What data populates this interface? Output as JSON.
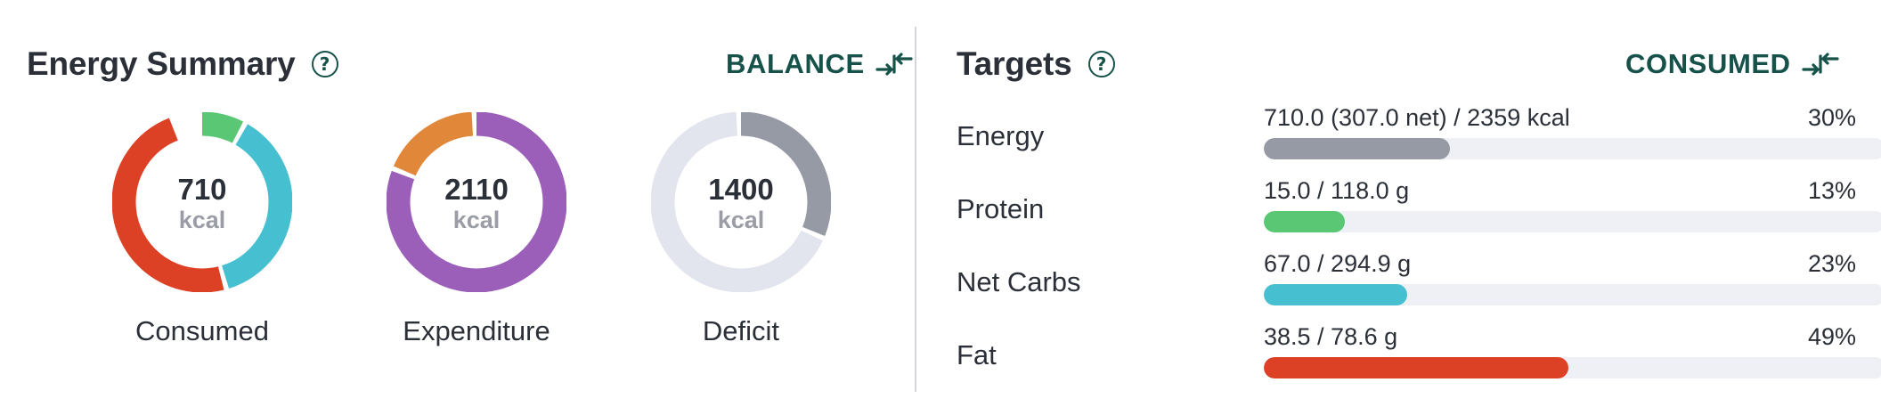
{
  "energy_summary": {
    "title": "Energy Summary",
    "help_icon": "question-circle-icon",
    "toggle_label": "BALANCE",
    "toggle_icon": "arrows-collapse-icon",
    "rings": [
      {
        "id": "consumed",
        "value": "710",
        "unit": "kcal",
        "label": "Consumed",
        "segments": [
          {
            "name": "protein",
            "fraction": 0.084,
            "color": "#5ac774"
          },
          {
            "name": "carbs",
            "fraction": 0.377,
            "color": "#46c0d1"
          },
          {
            "name": "fat",
            "fraction": 0.488,
            "color": "#dd4125"
          }
        ]
      },
      {
        "id": "expenditure",
        "value": "2110",
        "unit": "kcal",
        "label": "Expenditure",
        "segments": [
          {
            "name": "main",
            "fraction": 0.815,
            "color": "#9b5fba"
          },
          {
            "name": "activity",
            "fraction": 0.185,
            "color": "#e0873a"
          }
        ]
      },
      {
        "id": "deficit",
        "value": "1400",
        "unit": "kcal",
        "label": "Deficit",
        "segments": [
          {
            "name": "consumed",
            "fraction": 0.32,
            "color": "#969aa5"
          },
          {
            "name": "remaining",
            "fraction": 0.68,
            "color": "#e3e5ee"
          }
        ]
      }
    ]
  },
  "targets": {
    "title": "Targets",
    "help_icon": "question-circle-icon",
    "toggle_label": "CONSUMED",
    "toggle_icon": "arrows-collapse-icon",
    "track_color": "#eef0f5",
    "rows": [
      {
        "label": "Energy",
        "amount": "710.0 (307.0 net) / 2359 kcal",
        "percent": "30%",
        "fill": 0.3,
        "color": "#969aa5"
      },
      {
        "label": "Protein",
        "amount": "15.0 / 118.0 g",
        "percent": "13%",
        "fill": 0.13,
        "color": "#5ac774"
      },
      {
        "label": "Net Carbs",
        "amount": "67.0 / 294.9 g",
        "percent": "23%",
        "fill": 0.23,
        "color": "#46c0d1"
      },
      {
        "label": "Fat",
        "amount": "38.5 / 78.6 g",
        "percent": "49%",
        "fill": 0.49,
        "color": "#dd4125"
      }
    ]
  }
}
